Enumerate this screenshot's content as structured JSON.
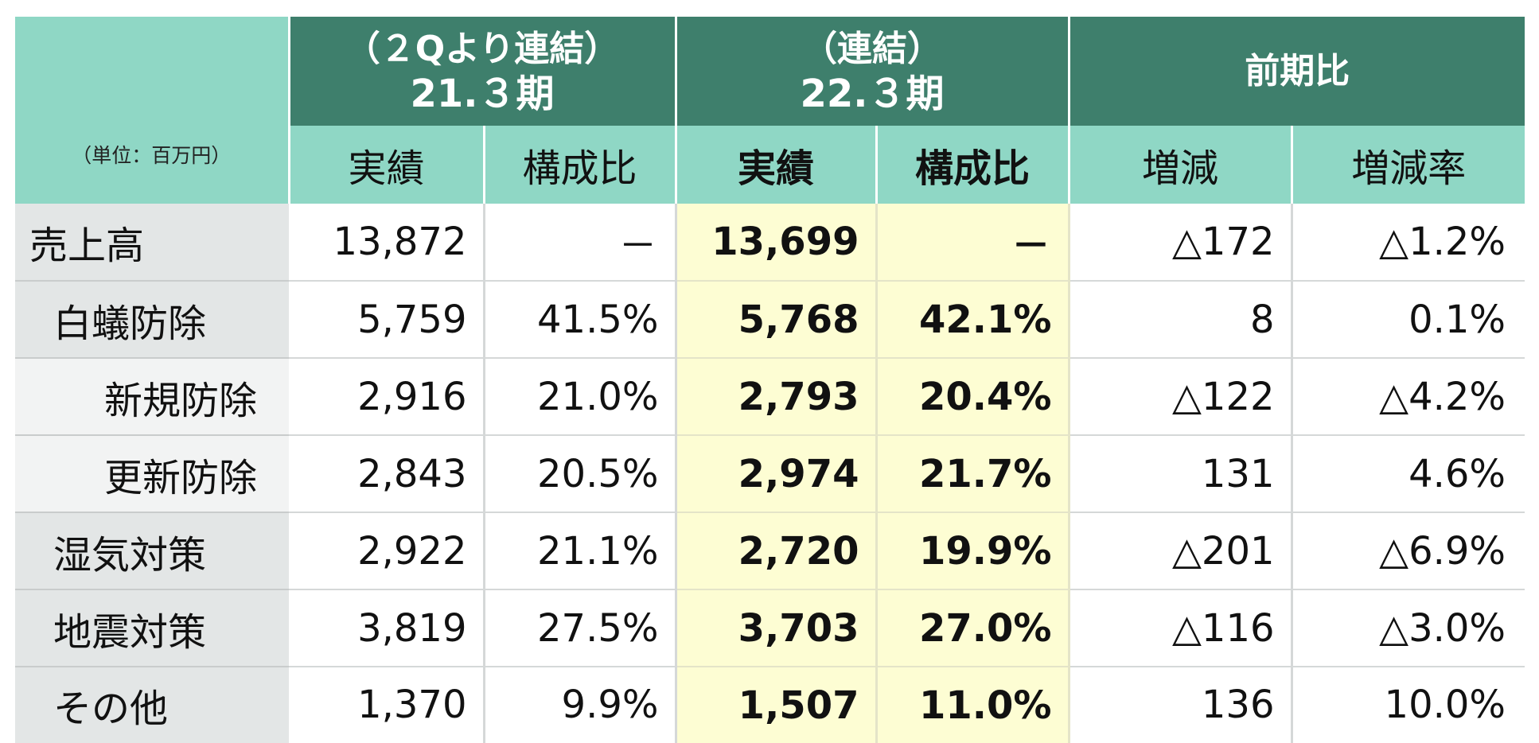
{
  "chart_data": {
    "type": "table",
    "unit_label": "（単位：百万円）",
    "column_groups": [
      {
        "line1": "（２Qより連結）",
        "line2": "21.３期"
      },
      {
        "line1": "（連結）",
        "line2": "22.３期"
      },
      {
        "line1": "前期比",
        "line2": ""
      }
    ],
    "subheaders": [
      "実績",
      "構成比",
      "実績",
      "構成比",
      "増減",
      "増減率"
    ],
    "rows": [
      {
        "label": "売上高",
        "cells": [
          "13,872",
          "－",
          "13,699",
          "－",
          "△172",
          "△1.2%"
        ]
      },
      {
        "label": "白蟻防除",
        "cells": [
          "5,759",
          "41.5%",
          "5,768",
          "42.1%",
          "8",
          "0.1%"
        ]
      },
      {
        "label": "新規防除",
        "cells": [
          "2,916",
          "21.0%",
          "2,793",
          "20.4%",
          "△122",
          "△4.2%"
        ]
      },
      {
        "label": "更新防除",
        "cells": [
          "2,843",
          "20.5%",
          "2,974",
          "21.7%",
          "131",
          "4.6%"
        ]
      },
      {
        "label": "湿気対策",
        "cells": [
          "2,922",
          "21.1%",
          "2,720",
          "19.9%",
          "△201",
          "△6.9%"
        ]
      },
      {
        "label": "地震対策",
        "cells": [
          "3,819",
          "27.5%",
          "3,703",
          "27.0%",
          "△116",
          "△3.0%"
        ]
      },
      {
        "label": "その他",
        "cells": [
          "1,370",
          "9.9%",
          "1,507",
          "11.0%",
          "136",
          "10.0%"
        ]
      }
    ],
    "colors": {
      "group_header": "#3e7f6c",
      "sub_header": "#8fd7c5",
      "highlight": "#fdfdd3",
      "row_label": "#e3e6e6"
    }
  }
}
